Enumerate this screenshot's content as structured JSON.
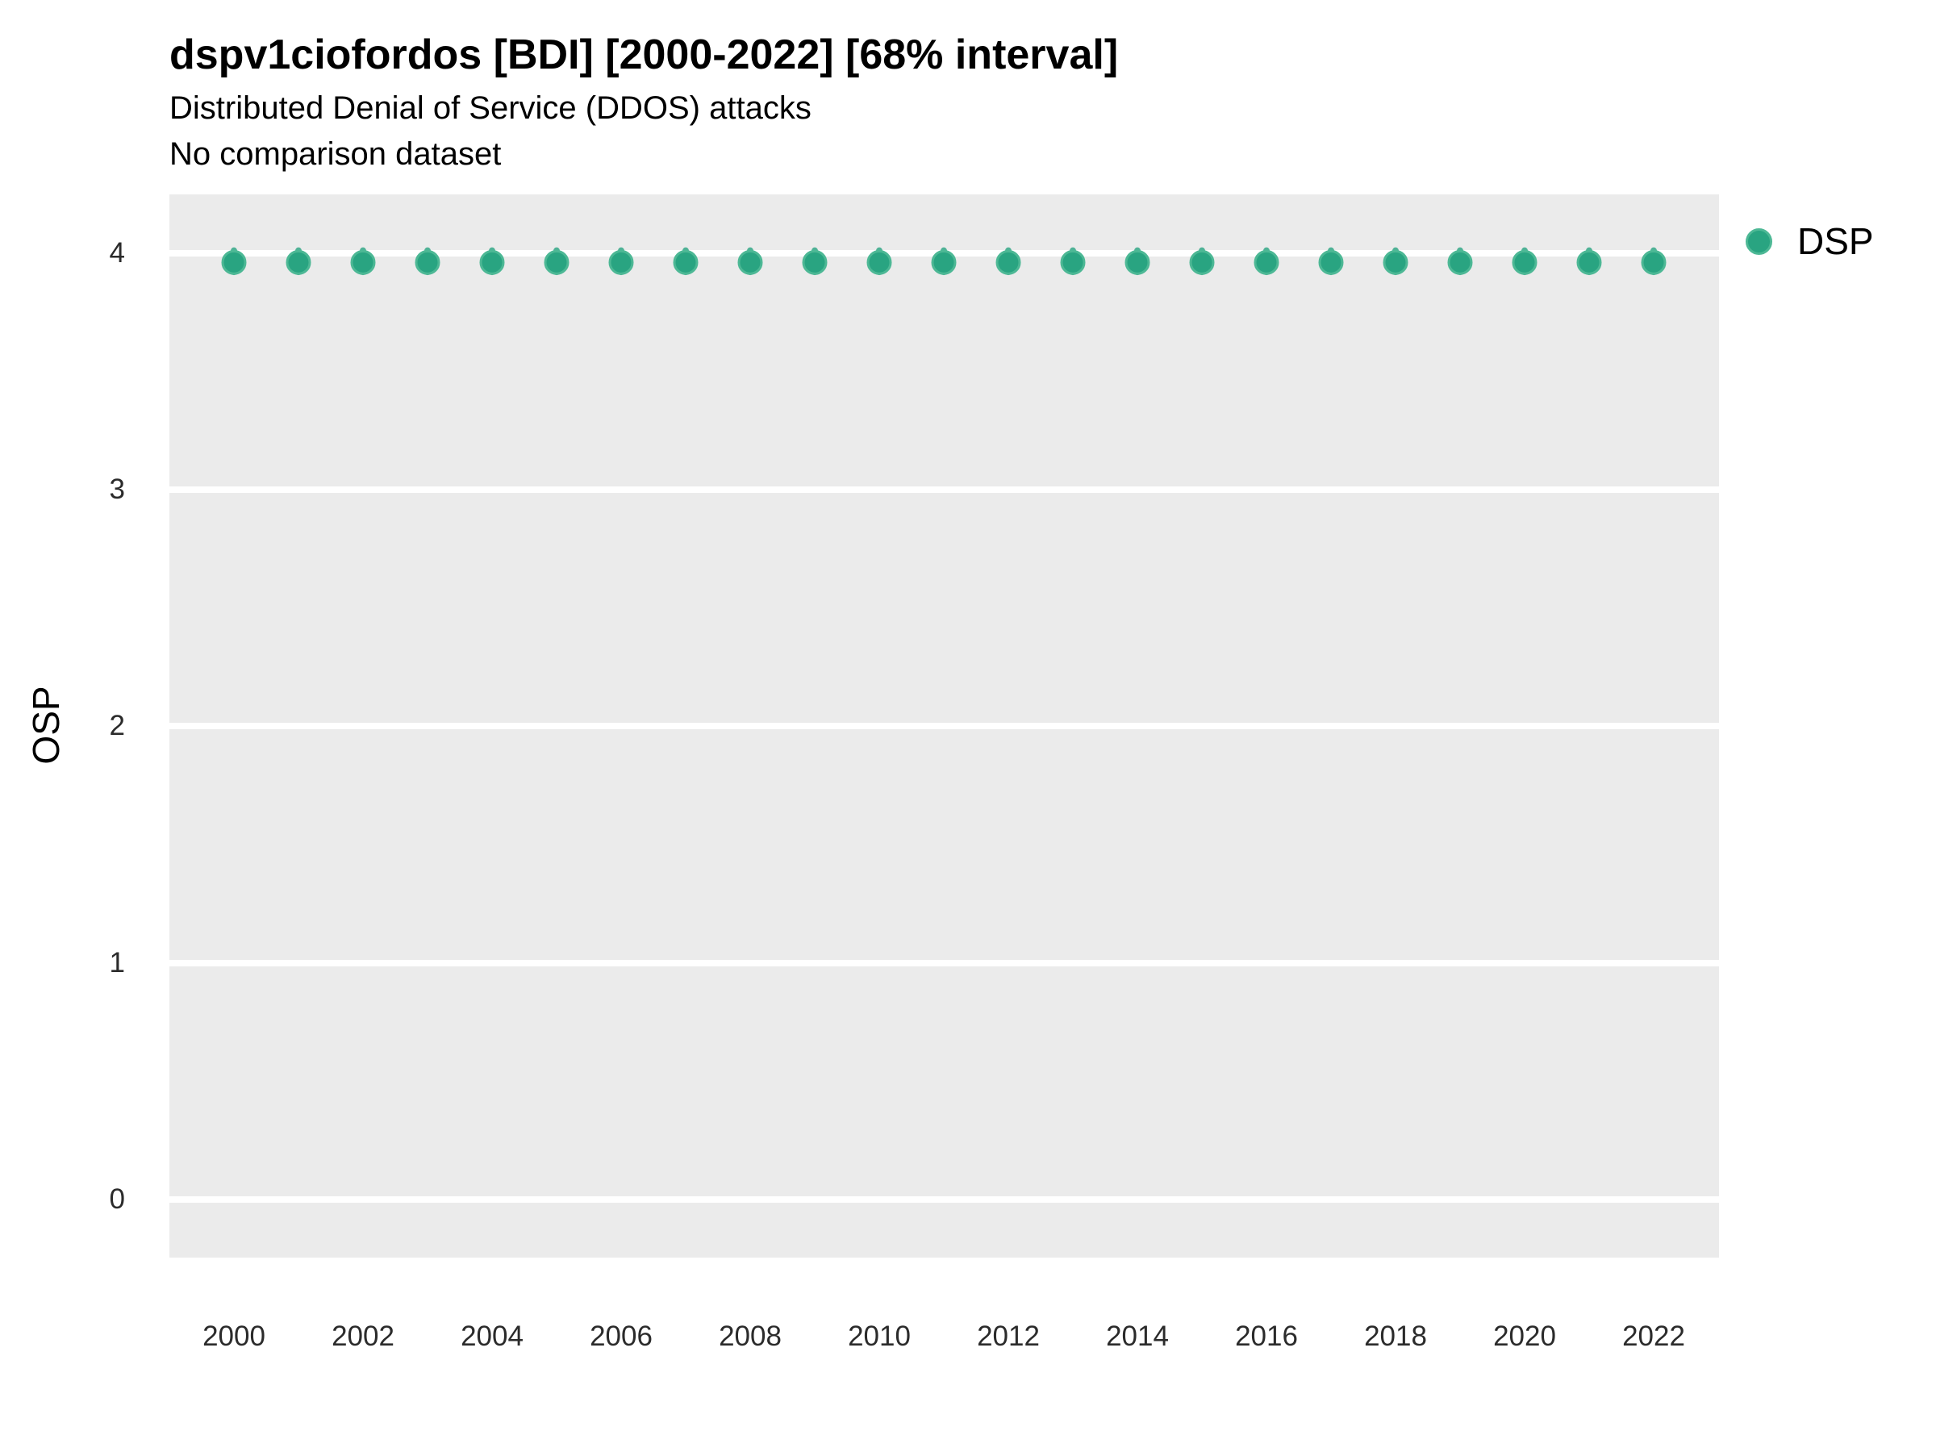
{
  "header": {
    "title": "dspv1ciofordos [BDI] [2000-2022] [68% interval]",
    "subtitle": "Distributed Denial of Service (DDOS) attacks",
    "comparison_note": "No comparison dataset"
  },
  "legend": {
    "position": "right",
    "items": [
      {
        "label": "DSP",
        "marker": "circle-icon",
        "color": "#29a481"
      }
    ]
  },
  "colors": {
    "panel_background": "#ebebeb",
    "gridline": "#ffffff",
    "point_fill": "#29a481",
    "point_stroke": "#4db895",
    "tick_text": "#2b2b2b",
    "text": "#000000"
  },
  "chart_data": {
    "type": "scatter",
    "title": "dspv1ciofordos [BDI] [2000-2022] [68% interval]",
    "subtitle": "Distributed Denial of Service (DDOS) attacks",
    "annotation": "No comparison dataset",
    "xlabel": "",
    "ylabel": "OSP",
    "x_ticks": [
      2000,
      2002,
      2004,
      2006,
      2008,
      2010,
      2012,
      2014,
      2016,
      2018,
      2020,
      2022
    ],
    "y_ticks": [
      4,
      3,
      2,
      1,
      0
    ],
    "ylim": [
      -0.25,
      4.25
    ],
    "xlim": [
      1999,
      2023
    ],
    "grid": "horizontal-major-only",
    "legend_position": "right",
    "interval": "68%",
    "series": [
      {
        "name": "DSP",
        "x": [
          2000,
          2001,
          2002,
          2003,
          2004,
          2005,
          2006,
          2007,
          2008,
          2009,
          2010,
          2011,
          2012,
          2013,
          2014,
          2015,
          2016,
          2017,
          2018,
          2019,
          2020,
          2021,
          2022
        ],
        "y": [
          3.96,
          3.96,
          3.96,
          3.96,
          3.96,
          3.96,
          3.96,
          3.96,
          3.96,
          3.96,
          3.96,
          3.96,
          3.96,
          3.96,
          3.96,
          3.96,
          3.96,
          3.96,
          3.96,
          3.96,
          3.96,
          3.96,
          3.96
        ],
        "interval_low": [
          3.92,
          3.92,
          3.92,
          3.92,
          3.92,
          3.92,
          3.92,
          3.92,
          3.92,
          3.92,
          3.92,
          3.92,
          3.92,
          3.92,
          3.92,
          3.92,
          3.92,
          3.92,
          3.92,
          3.92,
          3.92,
          3.92,
          3.92
        ],
        "interval_high": [
          4.01,
          4.01,
          4.01,
          4.01,
          4.01,
          4.01,
          4.01,
          4.01,
          4.01,
          4.01,
          4.01,
          4.01,
          4.01,
          4.01,
          4.01,
          4.01,
          4.01,
          4.01,
          4.01,
          4.01,
          4.01,
          4.01,
          4.01
        ]
      }
    ]
  }
}
